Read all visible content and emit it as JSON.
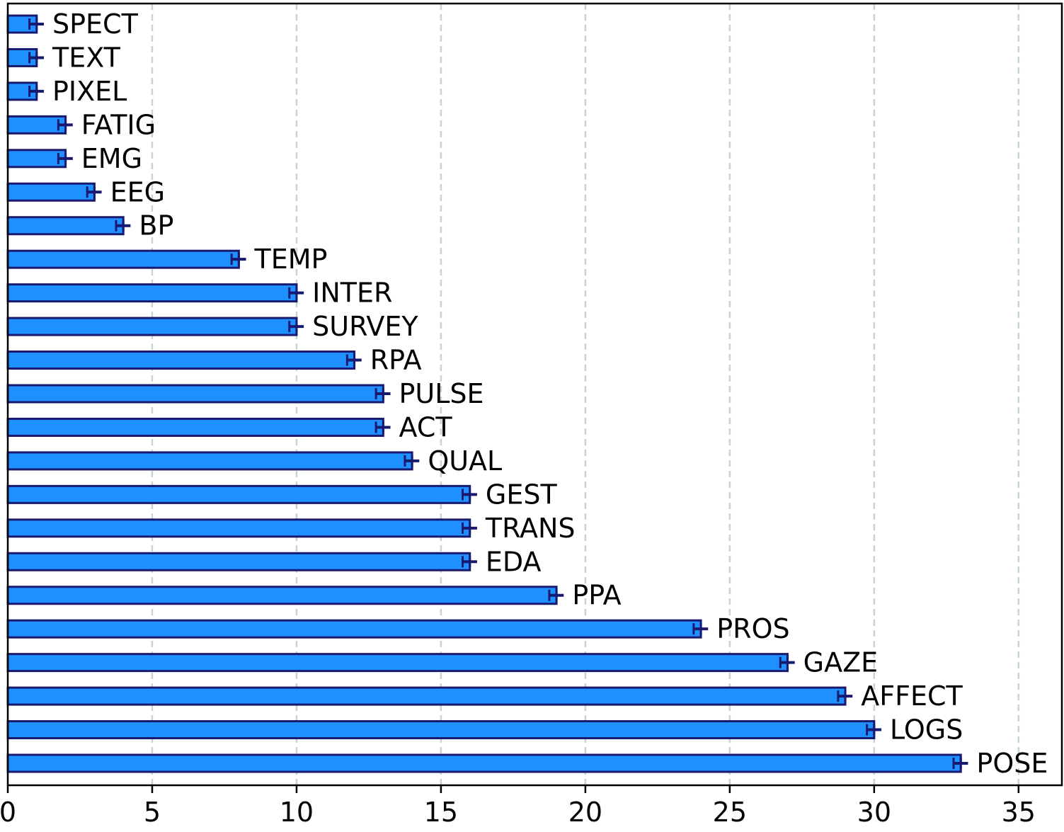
{
  "chart_data": {
    "type": "bar",
    "orientation": "horizontal",
    "categories": [
      "SPECT",
      "TEXT",
      "PIXEL",
      "FATIG",
      "EMG",
      "EEG",
      "BP",
      "TEMP",
      "INTER",
      "SURVEY",
      "RPA",
      "PULSE",
      "ACT",
      "QUAL",
      "GEST",
      "TRANS",
      "EDA",
      "PPA",
      "PROS",
      "GAZE",
      "AFFECT",
      "LOGS",
      "POSE"
    ],
    "values": [
      1,
      1,
      1,
      2,
      2,
      3,
      4,
      8,
      10,
      10,
      12,
      13,
      13,
      14,
      16,
      16,
      16,
      19,
      24,
      27,
      29,
      30,
      33
    ],
    "error": [
      0.25,
      0.25,
      0.25,
      0.25,
      0.25,
      0.25,
      0.25,
      0.25,
      0.25,
      0.25,
      0.25,
      0.25,
      0.25,
      0.25,
      0.25,
      0.25,
      0.25,
      0.25,
      0.25,
      0.25,
      0.25,
      0.25,
      0.25
    ],
    "xlim": [
      0,
      36.5
    ],
    "xticks": [
      0,
      5,
      10,
      15,
      20,
      25,
      30,
      35
    ],
    "title": "",
    "xlabel": "",
    "ylabel": "",
    "grid": "x dashed",
    "colors": {
      "bar_fill": "#1E90FF",
      "bar_edge": "#191970",
      "errorbar": "#191970",
      "grid": "#C8D4D2",
      "axis": "#000000"
    }
  }
}
